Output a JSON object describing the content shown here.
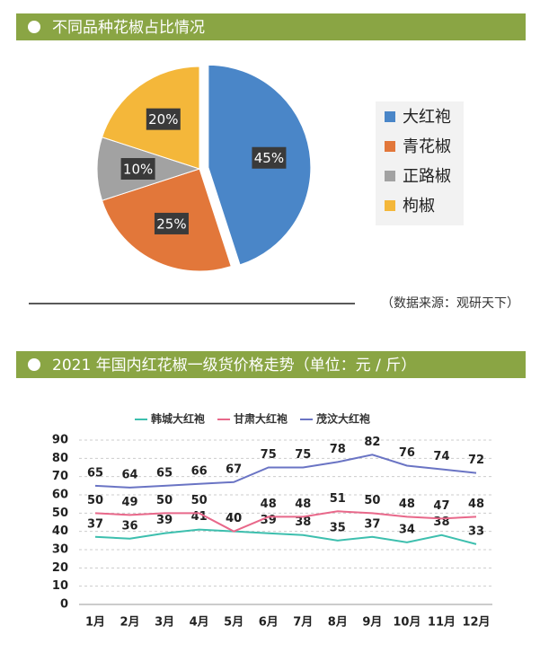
{
  "chart_data": [
    {
      "type": "pie",
      "title": "不同品种花椒占比情况",
      "categories": [
        "大红袍",
        "青花椒",
        "正路椒",
        "枸椒"
      ],
      "values": [
        45,
        25,
        10,
        20
      ],
      "value_labels": [
        "45%",
        "25%",
        "10%",
        "20%"
      ],
      "colors": [
        "#4a86c8",
        "#e2773a",
        "#a2a2a2",
        "#f4b73a"
      ],
      "source": "（数据来源：观研天下）"
    },
    {
      "type": "line",
      "title": "2021 年国内红花椒一级货价格走势（单位：元 / 斤）",
      "categories": [
        "1月",
        "2月",
        "3月",
        "4月",
        "5月",
        "6月",
        "7月",
        "8月",
        "9月",
        "10月",
        "11月",
        "12月"
      ],
      "series": [
        {
          "name": "韩城大红袍",
          "color": "#3dbfae",
          "values": [
            37,
            36,
            39,
            41,
            40,
            39,
            38,
            35,
            37,
            34,
            38,
            33
          ]
        },
        {
          "name": "甘肃大红袍",
          "color": "#e8688a",
          "values": [
            50,
            49,
            50,
            50,
            40,
            48,
            48,
            51,
            50,
            48,
            47,
            48
          ]
        },
        {
          "name": "茂汶大红袍",
          "color": "#6a74c4",
          "values": [
            65,
            64,
            65,
            66,
            67,
            75,
            75,
            78,
            82,
            76,
            74,
            72
          ]
        }
      ],
      "ylim": [
        0,
        90
      ],
      "yticks": [
        0,
        10,
        20,
        30,
        40,
        50,
        60,
        70,
        80,
        90
      ],
      "grid": true
    }
  ]
}
